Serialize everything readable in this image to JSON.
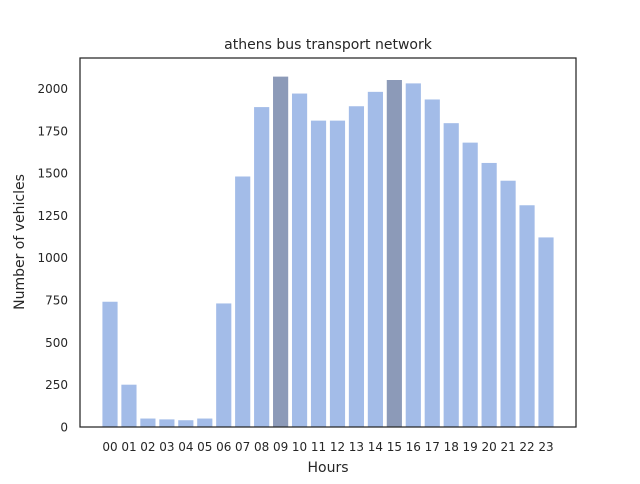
{
  "chart_data": {
    "type": "bar",
    "title": "athens bus transport network",
    "xlabel": "Hours",
    "ylabel": "Number of vehicles",
    "categories": [
      "00",
      "01",
      "02",
      "03",
      "04",
      "05",
      "06",
      "07",
      "08",
      "09",
      "10",
      "11",
      "12",
      "13",
      "14",
      "15",
      "16",
      "17",
      "18",
      "19",
      "20",
      "21",
      "22",
      "23"
    ],
    "values": [
      740,
      250,
      50,
      45,
      40,
      50,
      730,
      1480,
      1890,
      2070,
      1970,
      1810,
      1810,
      1895,
      1980,
      2050,
      2030,
      1935,
      1795,
      1680,
      1560,
      1455,
      1310,
      1120
    ],
    "highlighted": [
      "09",
      "15"
    ],
    "ylim": [
      0,
      2180
    ],
    "yticks": [
      0,
      250,
      500,
      750,
      1000,
      1250,
      1500,
      1750,
      2000
    ],
    "colors": {
      "bar": "#a3bce8",
      "highlight": "#8c9ab8",
      "frame": "#262626"
    },
    "grid": false,
    "legend": "none"
  }
}
